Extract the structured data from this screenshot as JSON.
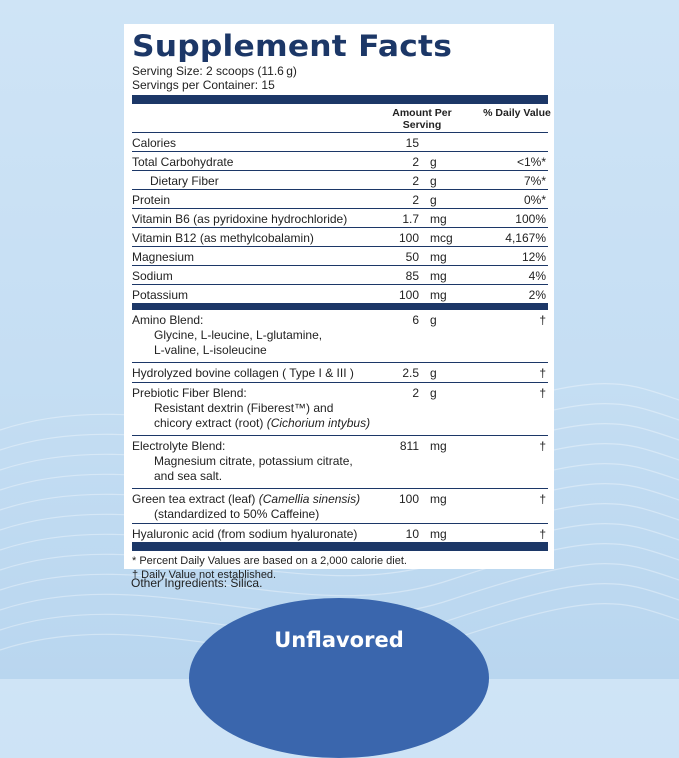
{
  "title": "Supplement Facts",
  "serving_size": "Serving Size: 2 scoops (11.6 g)",
  "servings_per_container": "Servings per Container: 15",
  "header": {
    "amount": "Amount Per Serving",
    "dv": "% Daily Value"
  },
  "rows": [
    {
      "name": "Calories",
      "amount": "15",
      "unit": "",
      "dv": ""
    },
    {
      "name": "Total Carbohydrate",
      "amount": "2",
      "unit": "g",
      "dv": "<1%*"
    },
    {
      "name": "Dietary Fiber",
      "amount": "2",
      "unit": "g",
      "dv": "7%*"
    },
    {
      "name": "Protein",
      "amount": "2",
      "unit": "g",
      "dv": "0%*"
    },
    {
      "name": "Vitamin B6 (as pyridoxine hydrochloride)",
      "amount": "1.7",
      "unit": "mg",
      "dv": "100%"
    },
    {
      "name": "Vitamin B12 (as methylcobalamin)",
      "amount": "100",
      "unit": "mcg",
      "dv": "4,167%"
    },
    {
      "name": "Magnesium",
      "amount": "50",
      "unit": "mg",
      "dv": "12%"
    },
    {
      "name": "Sodium",
      "amount": "85",
      "unit": "mg",
      "dv": "4%"
    },
    {
      "name": "Potassium",
      "amount": "100",
      "unit": "mg",
      "dv": "2%"
    }
  ],
  "blends": [
    {
      "name": "Amino Blend:",
      "sub1": "Glycine, L-leucine, L-glutamine,",
      "sub2": "L-valine, L-isoleucine",
      "amount": "6",
      "unit": "g",
      "dv": "†"
    },
    {
      "name": "Hydrolyzed bovine collagen ( Type I & III )",
      "amount": "2.5",
      "unit": "g",
      "dv": "†"
    },
    {
      "name": "Prebiotic Fiber Blend:",
      "sub1": "Resistant dextrin (Fiberest™) and",
      "sub2a": "chicory extract (root) ",
      "sub2b": "(Cichorium intybus)",
      "amount": "2",
      "unit": "g",
      "dv": "†"
    },
    {
      "name": "Electrolyte Blend:",
      "sub1": "Magnesium citrate, potassium citrate,",
      "sub2": "and sea salt.",
      "amount": "811",
      "unit": "mg",
      "dv": "†"
    },
    {
      "name_a": "Green tea extract (leaf) ",
      "name_b": "(Camellia sinensis)",
      "sub1": "(standardized to 50% Caffeine)",
      "amount": "100",
      "unit": "mg",
      "dv": "†"
    },
    {
      "name": "Hyaluronic acid (from sodium hyaluronate)",
      "amount": "10",
      "unit": "mg",
      "dv": "†"
    }
  ],
  "footnotes": {
    "percent": "* Percent Daily Values are based on a 2,000 calorie diet.",
    "dagger": "† Daily Value not established."
  },
  "other_ingredients": "Other Ingredients: Silica.",
  "flavor_badge": "Unflavored",
  "colors": {
    "navy": "#1c3767",
    "badge": "#3a66ad",
    "background": "#c9e0f4"
  }
}
